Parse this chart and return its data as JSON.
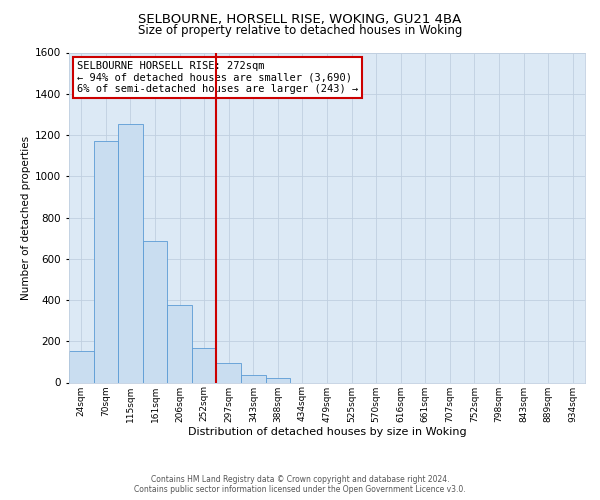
{
  "title": "SELBOURNE, HORSELL RISE, WOKING, GU21 4BA",
  "subtitle": "Size of property relative to detached houses in Woking",
  "xlabel": "Distribution of detached houses by size in Woking",
  "ylabel": "Number of detached properties",
  "bar_labels": [
    "24sqm",
    "70sqm",
    "115sqm",
    "161sqm",
    "206sqm",
    "252sqm",
    "297sqm",
    "343sqm",
    "388sqm",
    "434sqm",
    "479sqm",
    "525sqm",
    "570sqm",
    "616sqm",
    "661sqm",
    "707sqm",
    "752sqm",
    "798sqm",
    "843sqm",
    "889sqm",
    "934sqm"
  ],
  "bar_values": [
    155,
    1170,
    1255,
    685,
    375,
    165,
    95,
    38,
    22,
    0,
    0,
    0,
    0,
    0,
    0,
    0,
    0,
    0,
    0,
    0,
    0
  ],
  "bar_color": "#c9ddf0",
  "bar_edgecolor": "#5b9bd5",
  "vline_x_index": 5.5,
  "vline_color": "#cc0000",
  "ylim": [
    0,
    1600
  ],
  "yticks": [
    0,
    200,
    400,
    600,
    800,
    1000,
    1200,
    1400,
    1600
  ],
  "annotation_line1": "SELBOURNE HORSELL RISE: 272sqm",
  "annotation_line2": "← 94% of detached houses are smaller (3,690)",
  "annotation_line3": "6% of semi-detached houses are larger (243) →",
  "annotation_box_color": "#ffffff",
  "annotation_box_edgecolor": "#cc0000",
  "footer_line1": "Contains HM Land Registry data © Crown copyright and database right 2024.",
  "footer_line2": "Contains public sector information licensed under the Open Government Licence v3.0.",
  "background_color": "#ffffff",
  "axes_bg_color": "#dce9f5",
  "grid_color": "#c0cfe0",
  "title_fontsize": 9.5,
  "subtitle_fontsize": 8.5,
  "ylabel_fontsize": 7.5,
  "xlabel_fontsize": 8,
  "ytick_fontsize": 7.5,
  "xtick_fontsize": 6.5,
  "annotation_fontsize": 7.5,
  "footer_fontsize": 5.5
}
